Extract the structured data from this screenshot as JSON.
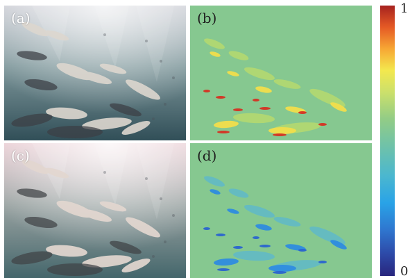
{
  "panels": [
    {
      "label": "(a)"
    },
    {
      "label": "(b)"
    },
    {
      "label": "(c)"
    },
    {
      "label": "(d)"
    }
  ],
  "colorbar": {
    "top_label": "1",
    "bottom_label": "0",
    "colors": [
      "#28257d",
      "#2d49a7",
      "#2f76cf",
      "#29a3e7",
      "#4bb7cf",
      "#6fc2a9",
      "#92cc86",
      "#cce06b",
      "#f3e84e",
      "#f7a734",
      "#e55a25",
      "#a6221f"
    ]
  },
  "colors": {
    "background": "#ffffff",
    "photo_tone_a": "#6e8f93",
    "photo_tone_c": "#7f9292",
    "map_base": "#86c890",
    "map_high": "#d63223",
    "map_low": "#2a64d0"
  }
}
